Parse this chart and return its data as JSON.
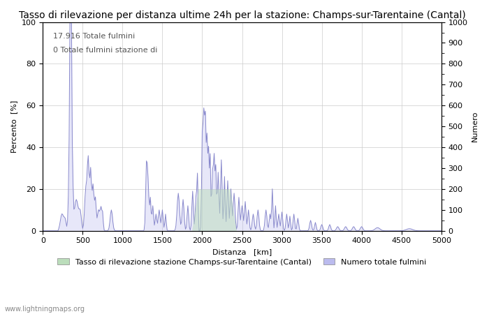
{
  "title": "Tasso di rilevazione per distanza ultime 24h per la stazione: Champs-sur-Tarentaine (Cantal)",
  "xlabel": "Distanza   [km]",
  "ylabel_left": "Percento  [%]",
  "ylabel_right": "Numero",
  "annotation_line1": "17.916 Totale fulmini",
  "annotation_line2": "0 Totale fulmini stazione di",
  "legend_green": "Tasso di rilevazione stazione Champs-sur-Tarentaine (Cantal)",
  "legend_blue": "Numero totale fulmini",
  "watermark": "www.lightningmaps.org",
  "xlim": [
    0,
    5000
  ],
  "ylim_left": [
    0,
    100
  ],
  "ylim_right": [
    0,
    1000
  ],
  "xticks": [
    0,
    500,
    1000,
    1500,
    2000,
    2500,
    3000,
    3500,
    4000,
    4500,
    5000
  ],
  "yticks_left": [
    0,
    20,
    40,
    60,
    80,
    100
  ],
  "yticks_right": [
    0,
    100,
    200,
    300,
    400,
    500,
    600,
    700,
    800,
    900,
    1000
  ],
  "line_color": "#8888cc",
  "fill_color_blue": "#bbbbee",
  "fill_color_green": "#bbddbb",
  "background_color": "#ffffff",
  "grid_color": "#cccccc",
  "title_fontsize": 10,
  "label_fontsize": 8,
  "tick_fontsize": 8
}
